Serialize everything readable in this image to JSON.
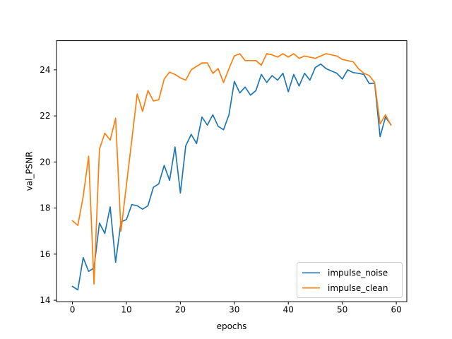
{
  "figure": {
    "background": "#ffffff",
    "spine_color": "#000000"
  },
  "chart_data": {
    "type": "line",
    "title": "",
    "xlabel": "epochs",
    "ylabel": "val_PSNR",
    "xlim": [
      -2.95,
      61.95
    ],
    "ylim": [
      13.935,
      25.265
    ],
    "xticks": [
      0,
      10,
      20,
      30,
      40,
      50,
      60
    ],
    "yticks": [
      14,
      16,
      18,
      20,
      22,
      24
    ],
    "grid": false,
    "legend_position": "lower right",
    "x": [
      0,
      1,
      2,
      3,
      4,
      5,
      6,
      7,
      8,
      9,
      10,
      11,
      12,
      13,
      14,
      15,
      16,
      17,
      18,
      19,
      20,
      21,
      22,
      23,
      24,
      25,
      26,
      27,
      28,
      29,
      30,
      31,
      32,
      33,
      34,
      35,
      36,
      37,
      38,
      39,
      40,
      41,
      42,
      43,
      44,
      45,
      46,
      47,
      48,
      49,
      50,
      51,
      52,
      53,
      54,
      55,
      56,
      57,
      58,
      59
    ],
    "series": [
      {
        "name": "impulse_noise",
        "color": "#1f77b4",
        "values": [
          14.6,
          14.45,
          15.85,
          15.25,
          15.4,
          17.35,
          16.9,
          18.05,
          15.65,
          17.4,
          17.5,
          18.15,
          18.1,
          17.95,
          18.1,
          18.9,
          19.05,
          19.85,
          19.2,
          20.65,
          18.65,
          20.7,
          21.2,
          20.8,
          21.95,
          21.6,
          22.05,
          21.55,
          21.4,
          22.05,
          23.5,
          23.0,
          23.25,
          22.9,
          23.1,
          23.8,
          23.45,
          23.75,
          23.55,
          23.85,
          23.05,
          23.8,
          23.3,
          23.85,
          23.55,
          24.1,
          24.25,
          24.05,
          23.95,
          23.85,
          23.6,
          24.0,
          23.88,
          23.85,
          23.8,
          23.4,
          23.42,
          21.1,
          21.95,
          21.62
        ]
      },
      {
        "name": "impulse_clean",
        "color": "#ff7f0e",
        "values": [
          17.45,
          17.25,
          18.5,
          20.25,
          14.7,
          20.55,
          21.25,
          20.95,
          21.9,
          17.0,
          19.0,
          20.95,
          22.95,
          22.2,
          23.1,
          22.65,
          22.7,
          23.6,
          23.9,
          23.8,
          23.65,
          23.55,
          24.0,
          24.15,
          24.3,
          24.3,
          23.85,
          24.05,
          23.45,
          24.05,
          24.6,
          24.7,
          24.4,
          24.4,
          24.4,
          24.2,
          24.7,
          24.65,
          24.55,
          24.7,
          24.55,
          24.7,
          24.5,
          24.6,
          24.55,
          24.5,
          24.6,
          24.7,
          24.65,
          24.6,
          24.45,
          24.4,
          24.35,
          24.05,
          23.85,
          23.75,
          23.45,
          21.65,
          22.05,
          21.6
        ]
      }
    ]
  },
  "legend": {
    "border_color": "#cccccc",
    "items": [
      {
        "label": "impulse_noise",
        "color": "#1f77b4"
      },
      {
        "label": "impulse_clean",
        "color": "#ff7f0e"
      }
    ]
  }
}
